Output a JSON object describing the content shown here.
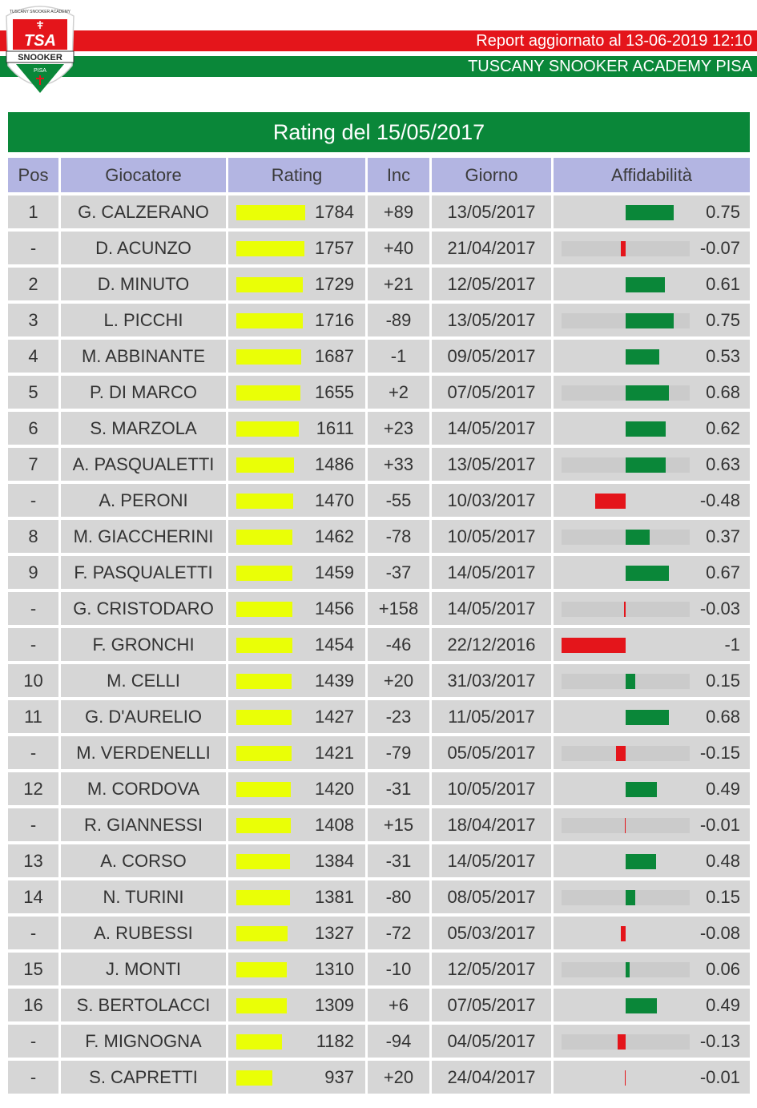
{
  "header": {
    "report_text": "Report aggiornato al 13-06-2019 12:10",
    "academy_text": "TUSCANY SNOOKER ACADEMY PISA",
    "logo": {
      "top_text": "TUSCANY SNOOKER ACADEMY",
      "brand": "TSA",
      "banner": "SNOOKER",
      "city": "PISA"
    }
  },
  "colors": {
    "red": "#e4151b",
    "green": "#0a8739",
    "header_cell": "#b3b5e2",
    "row_cell": "#d6d6d6",
    "rating_bar": "#eaff06",
    "aff_track": "#cbcbcb"
  },
  "table": {
    "title": "Rating del 15/05/2017",
    "columns": [
      "Pos",
      "Giocatore",
      "Rating",
      "Inc",
      "Giorno",
      "Affidabilità"
    ],
    "rating_max": 1784,
    "rows": [
      {
        "pos": "1",
        "name": "G. CALZERANO",
        "rating": 1784,
        "inc": "+89",
        "date": "13/05/2017",
        "aff": 0.75,
        "aff_label": "0.75",
        "track": false
      },
      {
        "pos": "-",
        "name": "D. ACUNZO",
        "rating": 1757,
        "inc": "+40",
        "date": "21/04/2017",
        "aff": -0.07,
        "aff_label": "-0.07",
        "track": true
      },
      {
        "pos": "2",
        "name": "D. MINUTO",
        "rating": 1729,
        "inc": "+21",
        "date": "12/05/2017",
        "aff": 0.61,
        "aff_label": "0.61",
        "track": false
      },
      {
        "pos": "3",
        "name": "L. PICCHI",
        "rating": 1716,
        "inc": "-89",
        "date": "13/05/2017",
        "aff": 0.75,
        "aff_label": "0.75",
        "track": true
      },
      {
        "pos": "4",
        "name": "M. ABBINANTE",
        "rating": 1687,
        "inc": "-1",
        "date": "09/05/2017",
        "aff": 0.53,
        "aff_label": "0.53",
        "track": false
      },
      {
        "pos": "5",
        "name": "P. DI MARCO",
        "rating": 1655,
        "inc": "+2",
        "date": "07/05/2017",
        "aff": 0.68,
        "aff_label": "0.68",
        "track": true
      },
      {
        "pos": "6",
        "name": "S. MARZOLA",
        "rating": 1611,
        "inc": "+23",
        "date": "14/05/2017",
        "aff": 0.62,
        "aff_label": "0.62",
        "track": false
      },
      {
        "pos": "7",
        "name": "A. PASQUALETTI",
        "rating": 1486,
        "inc": "+33",
        "date": "13/05/2017",
        "aff": 0.63,
        "aff_label": "0.63",
        "track": true
      },
      {
        "pos": "-",
        "name": "A. PERONI",
        "rating": 1470,
        "inc": "-55",
        "date": "10/03/2017",
        "aff": -0.48,
        "aff_label": "-0.48",
        "track": false
      },
      {
        "pos": "8",
        "name": "M. GIACCHERINI",
        "rating": 1462,
        "inc": "-78",
        "date": "10/05/2017",
        "aff": 0.37,
        "aff_label": "0.37",
        "track": true
      },
      {
        "pos": "9",
        "name": "F. PASQUALETTI",
        "rating": 1459,
        "inc": "-37",
        "date": "14/05/2017",
        "aff": 0.67,
        "aff_label": "0.67",
        "track": false
      },
      {
        "pos": "-",
        "name": "G. CRISTODARO",
        "rating": 1456,
        "inc": "+158",
        "date": "14/05/2017",
        "aff": -0.03,
        "aff_label": "-0.03",
        "track": true
      },
      {
        "pos": "-",
        "name": "F. GRONCHI",
        "rating": 1454,
        "inc": "-46",
        "date": "22/12/2016",
        "aff": -1,
        "aff_label": "-1",
        "track": false
      },
      {
        "pos": "10",
        "name": "M. CELLI",
        "rating": 1439,
        "inc": "+20",
        "date": "31/03/2017",
        "aff": 0.15,
        "aff_label": "0.15",
        "track": true
      },
      {
        "pos": "11",
        "name": "G. D'AURELIO",
        "rating": 1427,
        "inc": "-23",
        "date": "11/05/2017",
        "aff": 0.68,
        "aff_label": "0.68",
        "track": false
      },
      {
        "pos": "-",
        "name": "M. VERDENELLI",
        "rating": 1421,
        "inc": "-79",
        "date": "05/05/2017",
        "aff": -0.15,
        "aff_label": "-0.15",
        "track": true
      },
      {
        "pos": "12",
        "name": "M. CORDOVA",
        "rating": 1420,
        "inc": "-31",
        "date": "10/05/2017",
        "aff": 0.49,
        "aff_label": "0.49",
        "track": false
      },
      {
        "pos": "-",
        "name": "R. GIANNESSI",
        "rating": 1408,
        "inc": "+15",
        "date": "18/04/2017",
        "aff": -0.01,
        "aff_label": "-0.01",
        "track": true
      },
      {
        "pos": "13",
        "name": "A. CORSO",
        "rating": 1384,
        "inc": "-31",
        "date": "14/05/2017",
        "aff": 0.48,
        "aff_label": "0.48",
        "track": false
      },
      {
        "pos": "14",
        "name": "N. TURINI",
        "rating": 1381,
        "inc": "-80",
        "date": "08/05/2017",
        "aff": 0.15,
        "aff_label": "0.15",
        "track": true
      },
      {
        "pos": "-",
        "name": "A. RUBESSI",
        "rating": 1327,
        "inc": "-72",
        "date": "05/03/2017",
        "aff": -0.08,
        "aff_label": "-0.08",
        "track": false
      },
      {
        "pos": "15",
        "name": "J. MONTI",
        "rating": 1310,
        "inc": "-10",
        "date": "12/05/2017",
        "aff": 0.06,
        "aff_label": "0.06",
        "track": true
      },
      {
        "pos": "16",
        "name": "S. BERTOLACCI",
        "rating": 1309,
        "inc": "+6",
        "date": "07/05/2017",
        "aff": 0.49,
        "aff_label": "0.49",
        "track": false
      },
      {
        "pos": "-",
        "name": "F. MIGNOGNA",
        "rating": 1182,
        "inc": "-94",
        "date": "04/05/2017",
        "aff": -0.13,
        "aff_label": "-0.13",
        "track": true
      },
      {
        "pos": "-",
        "name": "S. CAPRETTI",
        "rating": 937,
        "inc": "+20",
        "date": "24/04/2017",
        "aff": -0.01,
        "aff_label": "-0.01",
        "track": false
      }
    ]
  }
}
